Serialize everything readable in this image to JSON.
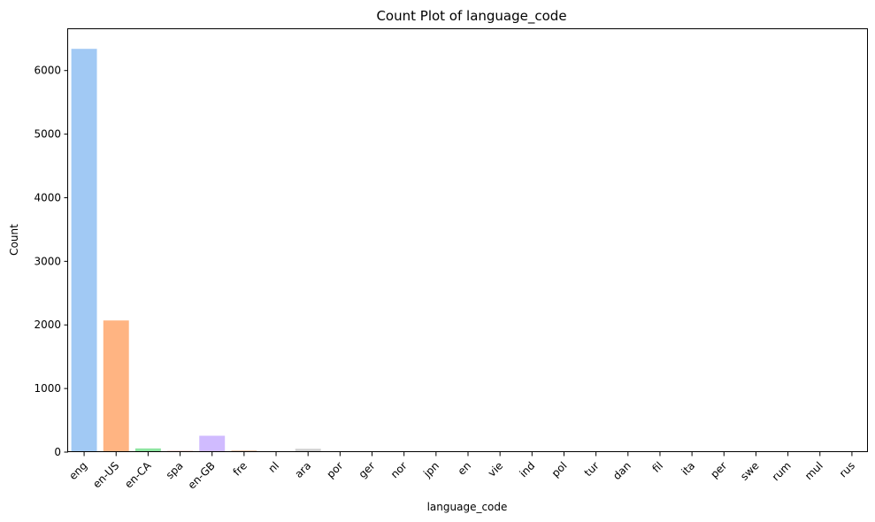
{
  "chart_data": {
    "type": "bar",
    "title": "Count Plot of language_code",
    "xlabel": "language_code",
    "ylabel": "Count",
    "ylim": [
      0,
      6650
    ],
    "yticks": [
      0,
      1000,
      2000,
      3000,
      4000,
      5000,
      6000
    ],
    "grid": false,
    "legend": "none",
    "categories": [
      "eng",
      "en-US",
      "en-CA",
      "spa",
      "en-GB",
      "fre",
      "nl",
      "ara",
      "por",
      "ger",
      "nor",
      "jpn",
      "en",
      "vie",
      "ind",
      "pol",
      "tur",
      "dan",
      "fil",
      "ita",
      "per",
      "swe",
      "rum",
      "mul",
      "rus"
    ],
    "values": [
      6341,
      2070,
      58,
      19,
      257,
      25,
      6,
      52,
      3,
      8,
      2,
      1,
      1,
      1,
      7,
      1,
      1,
      1,
      1,
      1,
      1,
      1,
      1,
      1,
      1
    ],
    "colors": [
      "#a1c9f4",
      "#ffb482",
      "#8de5a1",
      "#ff9f9b",
      "#d0bbff",
      "#debb9b",
      "#fab0e4",
      "#cfcfcf",
      "#fffea3",
      "#b9f2f0",
      "#a1c9f4",
      "#ffb482",
      "#8de5a1",
      "#ff9f9b",
      "#d0bbff",
      "#debb9b",
      "#fab0e4",
      "#cfcfcf",
      "#fffea3",
      "#b9f2f0",
      "#a1c9f4",
      "#ffb482",
      "#8de5a1",
      "#ff9f9b",
      "#d0bbff"
    ]
  }
}
